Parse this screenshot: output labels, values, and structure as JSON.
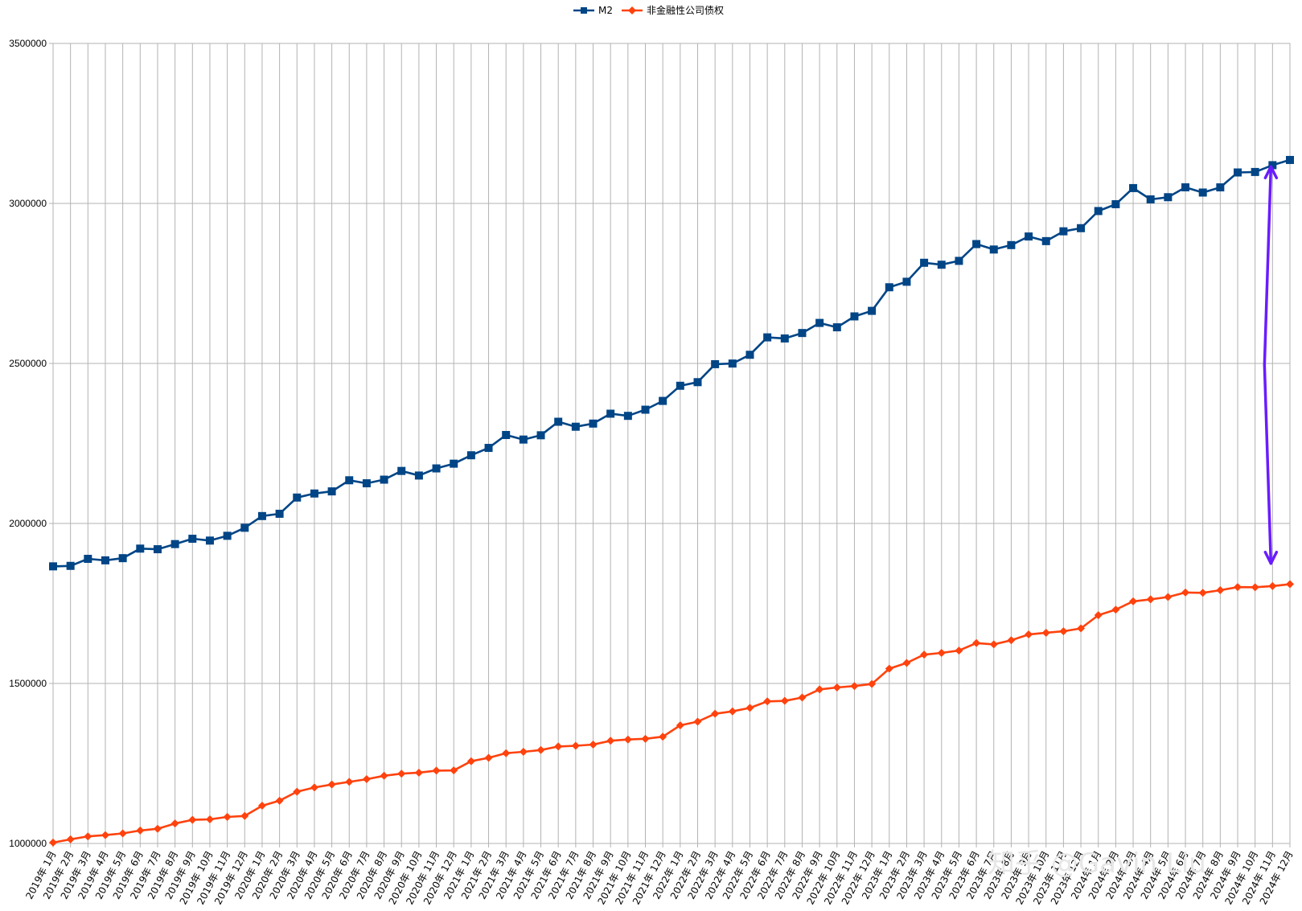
{
  "chart_data": {
    "type": "line",
    "title": "",
    "xlabel": "",
    "ylabel": "",
    "ylim": [
      1000000,
      3500000
    ],
    "y_ticks": [
      "1000000",
      "1500000",
      "2000000",
      "2500000",
      "3000000",
      "3500000"
    ],
    "grid": true,
    "legend_position": "top",
    "categories": [
      "2019年 1月",
      "2019年 2月",
      "2019年 3月",
      "2019年 4月",
      "2019年 5月",
      "2019年 6月",
      "2019年 7月",
      "2019年 8月",
      "2019年 9月",
      "2019年 10月",
      "2019年 11月",
      "2019年 12月",
      "2020年 1月",
      "2020年 2月",
      "2020年 3月",
      "2020年 4月",
      "2020年 5月",
      "2020年 6月",
      "2020年 7月",
      "2020年 8月",
      "2020年 9月",
      "2020年 10月",
      "2020年 11月",
      "2020年 12月",
      "2021年 1月",
      "2021年 2月",
      "2021年 3月",
      "2021年 4月",
      "2021年 5月",
      "2021年 6月",
      "2021年 7月",
      "2021年 8月",
      "2021年 9月",
      "2021年 10月",
      "2021年 11月",
      "2021年 12月",
      "2022年 1月",
      "2022年 2月",
      "2022年 3月",
      "2022年 4月",
      "2022年 5月",
      "2022年 6月",
      "2022年 7月",
      "2022年 8月",
      "2022年 9月",
      "2022年 10月",
      "2022年 11月",
      "2022年 12月",
      "2023年 1月",
      "2023年 2月",
      "2023年 3月",
      "2023年 4月",
      "2023年 5月",
      "2023年 6月",
      "2023年 7月",
      "2023年 8月",
      "2023年 9月",
      "2023年 10月",
      "2023年 11月",
      "2023年 12月",
      "2024年 1月",
      "2024年 2月",
      "2024年 3月",
      "2024年 4月",
      "2024年 5月",
      "2024年 6月",
      "2024年 7月",
      "2024年 8月",
      "2024年 9月",
      "2024年 10月",
      "2024年 11月",
      "2024年 12月"
    ],
    "series": [
      {
        "name": "M2",
        "color": "#004586",
        "marker": "square",
        "values": [
          1865935,
          1867427,
          1889412,
          1884670,
          1891545,
          1921360,
          1919410,
          1935500,
          1952180,
          1946450,
          1961410,
          1986490,
          2023070,
          2030250,
          2080920,
          2093550,
          2100180,
          2134930,
          2125500,
          2136840,
          2164080,
          2149720,
          2172000,
          2186800,
          2213050,
          2236030,
          2276360,
          2262140,
          2275540,
          2317790,
          2302220,
          2312080,
          2342960,
          2336160,
          2355440,
          2382900,
          2430220,
          2441490,
          2497690,
          2499690,
          2527030,
          2581450,
          2578080,
          2595070,
          2626600,
          2612910,
          2647010,
          2664320,
          2738070,
          2755250,
          2814570,
          2808470,
          2820500,
          2873000,
          2855990,
          2869820,
          2896660,
          2882260,
          2912880,
          2922710,
          2976250,
          2997600,
          3047950,
          3012650,
          3019470,
          3050330,
          3033990,
          3050210,
          3096730,
          3098270,
          3119530,
          3135820
        ]
      },
      {
        "name": "非金融性公司债权",
        "color": "#ff420e",
        "marker": "diamond",
        "values": [
          1002830,
          1012770,
          1022140,
          1026170,
          1031490,
          1040370,
          1046000,
          1062380,
          1073920,
          1075330,
          1082800,
          1086050,
          1117960,
          1133620,
          1161710,
          1174860,
          1184210,
          1192470,
          1200860,
          1211610,
          1218050,
          1221240,
          1227600,
          1228230,
          1256930,
          1267520,
          1282110,
          1286430,
          1292020,
          1302990,
          1305330,
          1309170,
          1320870,
          1324880,
          1327060,
          1333610,
          1369170,
          1380760,
          1405370,
          1412820,
          1423540,
          1444050,
          1445580,
          1455990,
          1481420,
          1487480,
          1491950,
          1498310,
          1546150,
          1563990,
          1590070,
          1595380,
          1602720,
          1626250,
          1622130,
          1634940,
          1653140,
          1658420,
          1663140,
          1672080,
          1713350,
          1730640,
          1756650,
          1762730,
          1770120,
          1784150,
          1783170,
          1791440,
          1801070,
          1800630,
          1804390,
          1810150
        ]
      }
    ],
    "annotations": [
      {
        "type": "double-arrow",
        "color": "#6a1cff",
        "x_category": "2024年 11月",
        "from": 3115000,
        "to": 1875000
      }
    ]
  },
  "watermark": "知乎 @Gavin Liu"
}
